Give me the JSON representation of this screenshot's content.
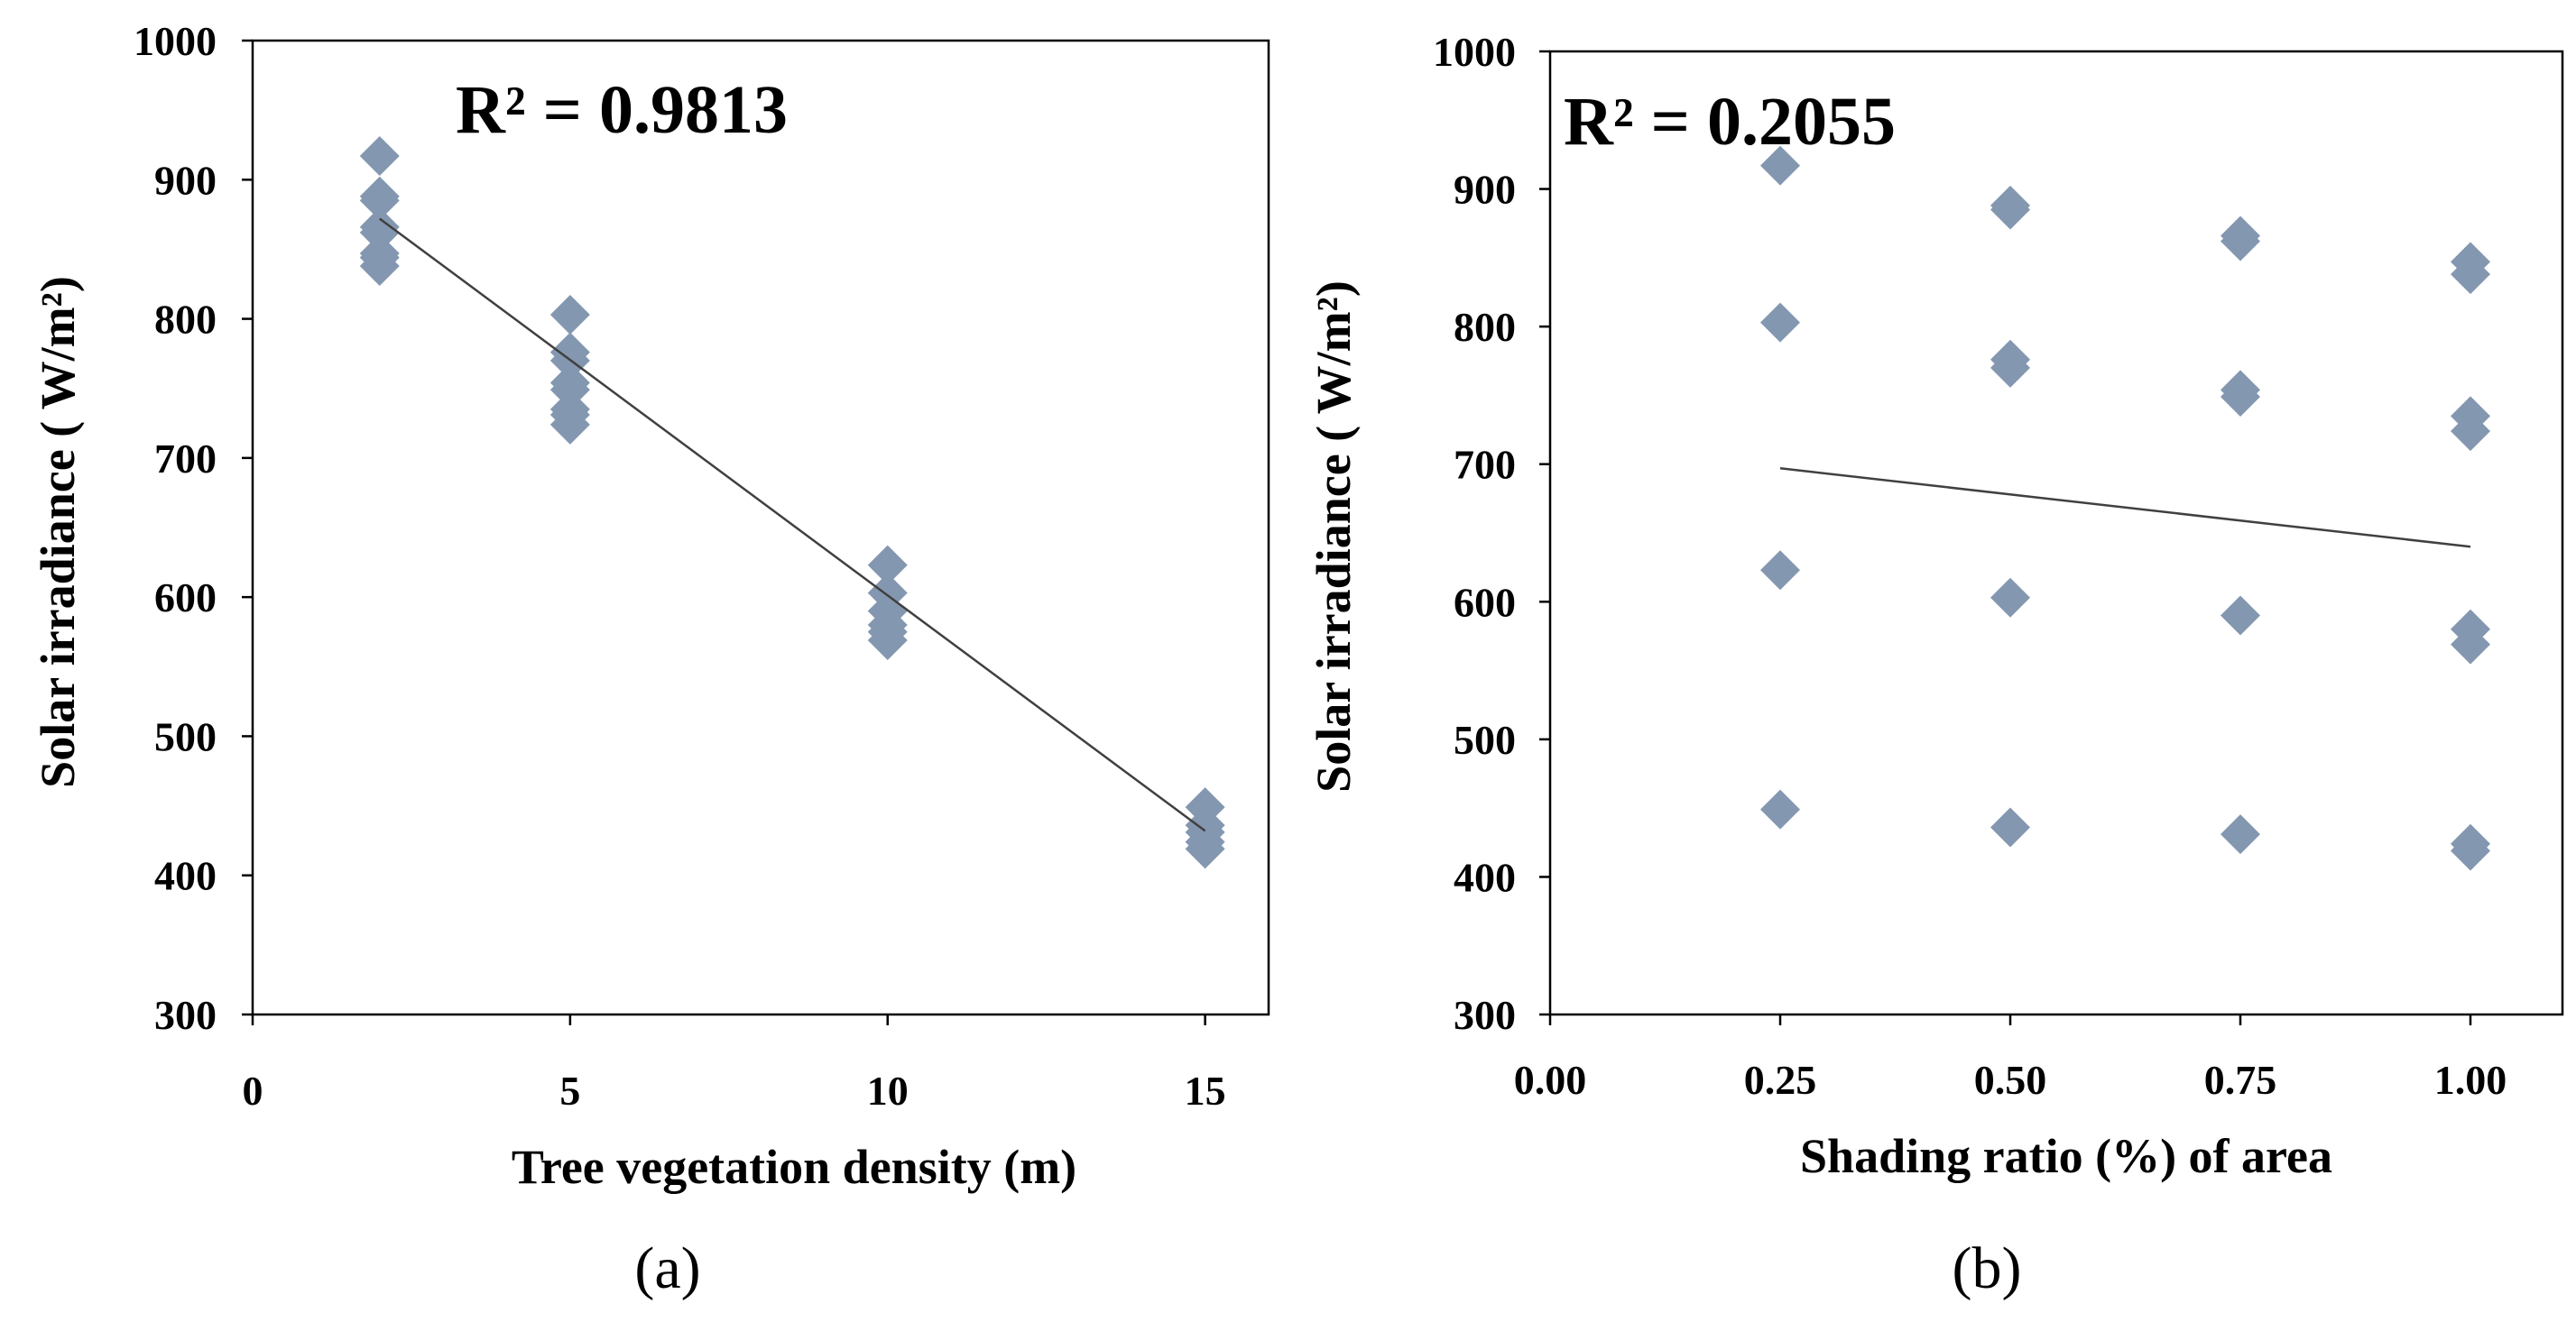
{
  "chart_data": [
    {
      "type": "scatter",
      "panel_label": "(a)",
      "xlabel": "Tree vegetation density (m)",
      "ylabel": "Solar irradiance ( W/m²)",
      "annotation": "R² = 0.9813",
      "xlim": [
        0,
        16
      ],
      "ylim": [
        300,
        1000
      ],
      "x_ticks": [
        0,
        5,
        10,
        15
      ],
      "x_tick_labels": [
        "0",
        "5",
        "10",
        "15"
      ],
      "y_ticks": [
        300,
        400,
        500,
        600,
        700,
        800,
        900,
        1000
      ],
      "y_tick_labels": [
        "300",
        "400",
        "500",
        "600",
        "700",
        "800",
        "900",
        "1000"
      ],
      "marker": "diamond",
      "marker_color": "#8497b0",
      "trendline_color": "#404040",
      "points": [
        {
          "x": 2,
          "y": 917
        },
        {
          "x": 2,
          "y": 888
        },
        {
          "x": 2,
          "y": 885
        },
        {
          "x": 2,
          "y": 866
        },
        {
          "x": 2,
          "y": 862
        },
        {
          "x": 2,
          "y": 847
        },
        {
          "x": 2,
          "y": 844
        },
        {
          "x": 2,
          "y": 838
        },
        {
          "x": 5,
          "y": 803
        },
        {
          "x": 5,
          "y": 776
        },
        {
          "x": 5,
          "y": 770
        },
        {
          "x": 5,
          "y": 754
        },
        {
          "x": 5,
          "y": 749
        },
        {
          "x": 5,
          "y": 735
        },
        {
          "x": 5,
          "y": 731
        },
        {
          "x": 5,
          "y": 724
        },
        {
          "x": 10,
          "y": 623
        },
        {
          "x": 10,
          "y": 603
        },
        {
          "x": 10,
          "y": 590
        },
        {
          "x": 10,
          "y": 580
        },
        {
          "x": 10,
          "y": 575
        },
        {
          "x": 10,
          "y": 569
        },
        {
          "x": 15,
          "y": 449
        },
        {
          "x": 15,
          "y": 436
        },
        {
          "x": 15,
          "y": 431
        },
        {
          "x": 15,
          "y": 424
        },
        {
          "x": 15,
          "y": 419
        }
      ],
      "trendline": {
        "x": [
          2,
          15
        ],
        "y": [
          872,
          432
        ]
      }
    },
    {
      "type": "scatter",
      "panel_label": "(b)",
      "xlabel": "Shading ratio (%) of  area",
      "ylabel": "Solar irradiance ( W/m²)",
      "annotation": "R² = 0.2055",
      "xlim": [
        0,
        1.1
      ],
      "ylim": [
        300,
        1000
      ],
      "x_ticks": [
        0,
        0.25,
        0.5,
        0.75,
        1.0
      ],
      "x_tick_labels": [
        "0.00",
        "0.25",
        "0.50",
        "0.75",
        "1.00"
      ],
      "y_ticks": [
        300,
        400,
        500,
        600,
        700,
        800,
        900,
        1000
      ],
      "y_tick_labels": [
        "300",
        "400",
        "500",
        "600",
        "700",
        "800",
        "900",
        "1000"
      ],
      "marker": "diamond",
      "marker_color": "#8497b0",
      "trendline_color": "#404040",
      "points": [
        {
          "x": 0.25,
          "y": 917
        },
        {
          "x": 0.25,
          "y": 803
        },
        {
          "x": 0.25,
          "y": 623
        },
        {
          "x": 0.25,
          "y": 449
        },
        {
          "x": 0.5,
          "y": 888
        },
        {
          "x": 0.5,
          "y": 885
        },
        {
          "x": 0.5,
          "y": 776
        },
        {
          "x": 0.5,
          "y": 770
        },
        {
          "x": 0.5,
          "y": 603
        },
        {
          "x": 0.5,
          "y": 436
        },
        {
          "x": 0.75,
          "y": 866
        },
        {
          "x": 0.75,
          "y": 862
        },
        {
          "x": 0.75,
          "y": 754
        },
        {
          "x": 0.75,
          "y": 749
        },
        {
          "x": 0.75,
          "y": 590
        },
        {
          "x": 0.75,
          "y": 431
        },
        {
          "x": 1.0,
          "y": 847
        },
        {
          "x": 1.0,
          "y": 838
        },
        {
          "x": 1.0,
          "y": 735
        },
        {
          "x": 1.0,
          "y": 724
        },
        {
          "x": 1.0,
          "y": 580
        },
        {
          "x": 1.0,
          "y": 569
        },
        {
          "x": 1.0,
          "y": 424
        },
        {
          "x": 1.0,
          "y": 419
        }
      ],
      "trendline": {
        "x": [
          0.25,
          1.0
        ],
        "y": [
          697,
          640
        ]
      }
    }
  ]
}
